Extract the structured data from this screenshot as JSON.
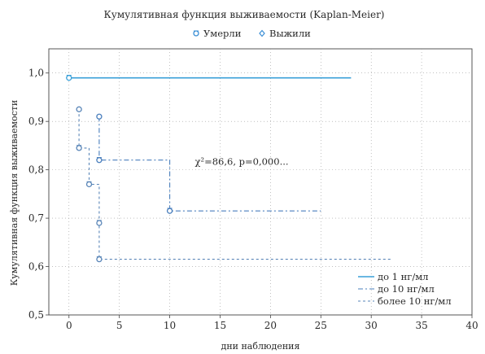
{
  "chart_data": {
    "type": "line",
    "title": "Кумулятивная функция выживаемости (Kaplan-Meier)",
    "top_legend": [
      {
        "symbol": "circle-with-bar",
        "label": "Умерли",
        "color": "#3b8fd6"
      },
      {
        "symbol": "diamond",
        "label": "Выжили",
        "color": "#3b8fd6"
      }
    ],
    "xlabel": "дни наблюдения",
    "ylabel": "Кумулятивная функция выживаемости",
    "xlim": [
      -2,
      40
    ],
    "ylim": [
      0.5,
      1.05
    ],
    "xticks": [
      0,
      5,
      10,
      15,
      20,
      25,
      30,
      35,
      40
    ],
    "yticks": [
      0.5,
      0.6,
      0.7,
      0.8,
      0.9,
      1.0
    ],
    "ytick_labels": [
      "0,5",
      "0,6",
      "0,7",
      "0,8",
      "0,9",
      "1,0"
    ],
    "grid": true,
    "annotation": {
      "text": "χ²=86,6, p=0,000...",
      "x": 12.5,
      "y": 0.81
    },
    "legend_position": "bottom-right",
    "series": [
      {
        "name": "до 1 нг/мл",
        "color": "#3aa0d8",
        "dash": "",
        "steps": [
          [
            0,
            0.99
          ],
          [
            28,
            0.99
          ]
        ],
        "died": [
          [
            0,
            0.99
          ]
        ],
        "censored": []
      },
      {
        "name": "до 10 нг/мл",
        "color": "#4a7fbd",
        "dash": "6,3,2,3",
        "steps": [
          [
            3,
            0.91
          ],
          [
            3,
            0.82
          ],
          [
            10,
            0.82
          ],
          [
            10,
            0.715
          ],
          [
            25,
            0.715
          ]
        ],
        "died": [
          [
            3,
            0.82
          ],
          [
            10,
            0.715
          ]
        ],
        "censored": [
          [
            3,
            0.91
          ]
        ]
      },
      {
        "name": "более 10 нг/мл",
        "color": "#5a86b8",
        "dash": "3,3",
        "steps": [
          [
            1,
            0.925
          ],
          [
            1,
            0.845
          ],
          [
            2,
            0.845
          ],
          [
            2,
            0.77
          ],
          [
            3,
            0.77
          ],
          [
            3,
            0.69
          ],
          [
            3,
            0.615
          ],
          [
            32,
            0.615
          ]
        ],
        "died": [
          [
            1,
            0.845
          ],
          [
            2,
            0.77
          ],
          [
            3,
            0.69
          ],
          [
            3,
            0.615
          ]
        ],
        "censored": [
          [
            1,
            0.925
          ]
        ]
      }
    ]
  }
}
